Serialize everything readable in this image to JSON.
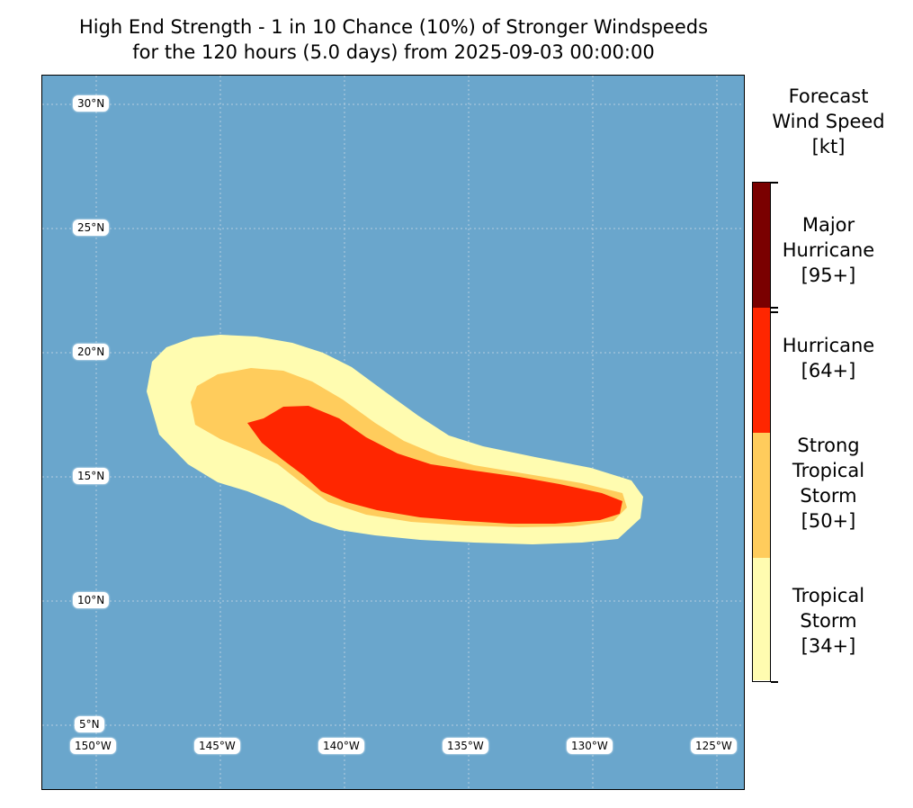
{
  "title": {
    "line1": "High End Strength - 1 in 10 Chance (10%) of Stronger Windspeeds",
    "line2": "for the 120 hours (5.0 days) from 2025-09-03 00:00:00"
  },
  "colorbar": {
    "title_lines": [
      "Forecast",
      "Wind Speed",
      "[kt]"
    ],
    "categories": [
      {
        "name_lines": [
          "Major",
          "Hurricane",
          "[95+]"
        ],
        "threshold_kt": 95,
        "color": "#7a0000"
      },
      {
        "name_lines": [
          "Hurricane",
          "[64+]"
        ],
        "threshold_kt": 64,
        "color": "#ff2600"
      },
      {
        "name_lines": [
          "Strong",
          "Tropical",
          "Storm",
          "[50+]"
        ],
        "threshold_kt": 50,
        "color": "#ffcc5c"
      },
      {
        "name_lines": [
          "Tropical",
          "Storm",
          "[34+]"
        ],
        "threshold_kt": 34,
        "color": "#fffcb0"
      }
    ]
  },
  "map": {
    "ocean_color": "#6aa6cc",
    "lat_labels": [
      "30°N",
      "25°N",
      "20°N",
      "15°N",
      "10°N",
      "5°N"
    ],
    "lon_labels": [
      "150°W",
      "145°W",
      "140°W",
      "135°W",
      "130°W",
      "125°W"
    ]
  }
}
